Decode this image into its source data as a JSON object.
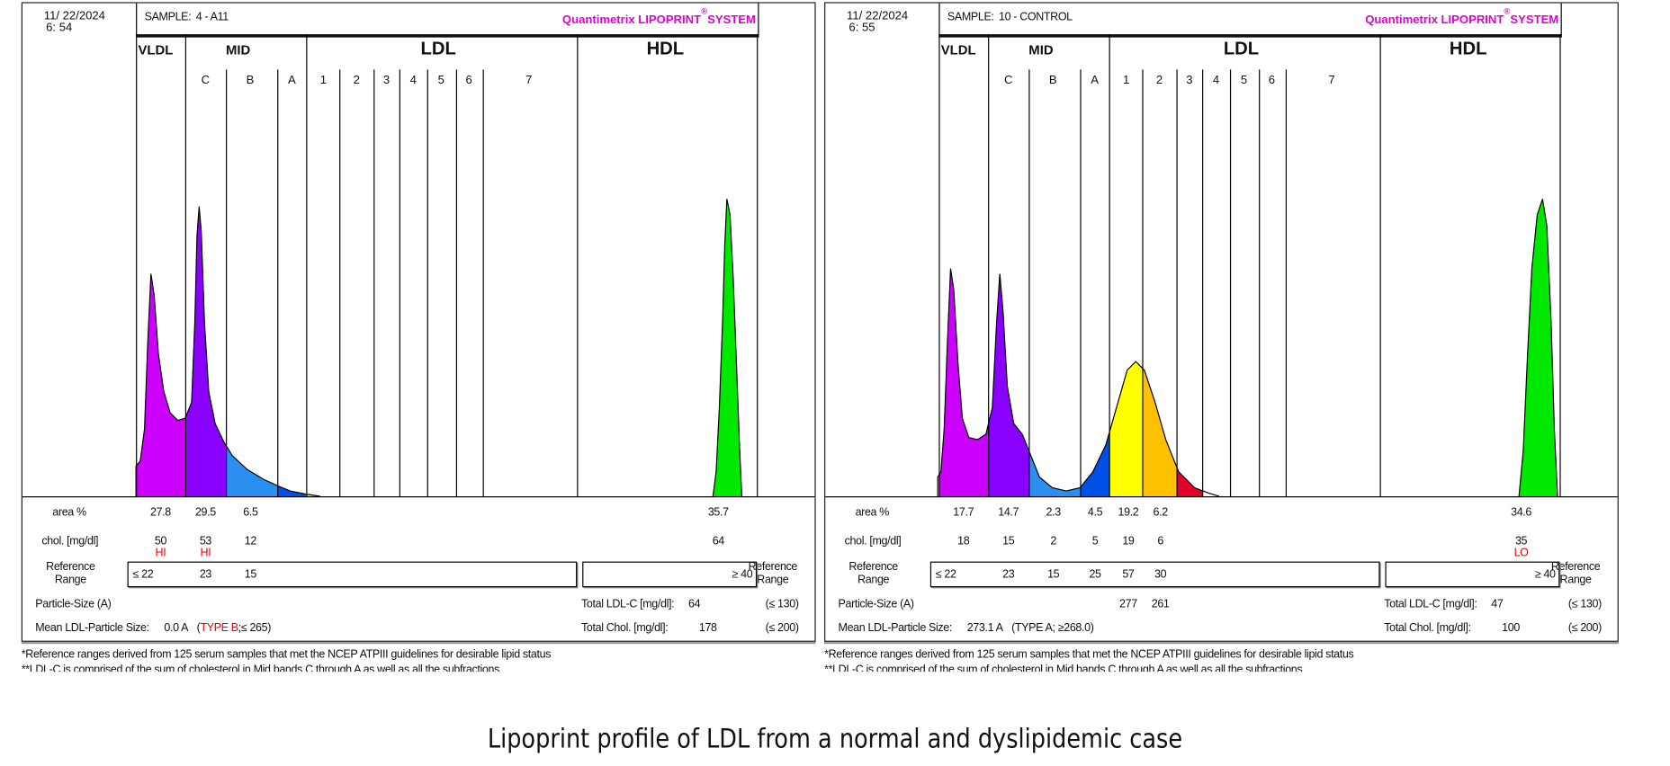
{
  "caption": "Lipoprint profile of LDL from a normal and dyslipidemic case",
  "footnotes": [
    "*Reference ranges derived from 125 serum samples that met the NCEP ATPIII guidelines for desirable lipid status",
    "**LDL-C is comprised of the sum of cholesterol in Mid bands C through A as well as all the subfractions"
  ],
  "labels": {
    "sample": "SAMPLE:",
    "brand": "Quantimetrix LIPOPRINT",
    "brand_mark": "®",
    "brand_suffix": "SYSTEM",
    "classes": [
      "VLDL",
      "MID",
      "LDL",
      "HDL"
    ],
    "subclasses": [
      "C",
      "B",
      "A",
      "1",
      "2",
      "3",
      "4",
      "5",
      "6",
      "7"
    ],
    "area": "area %",
    "chol": "chol. [mg/dl]",
    "reference_range": [
      "Reference",
      "Range"
    ],
    "particle_size": "Particle-Size (A)",
    "mean_size": "Mean LDL-Particle Size:",
    "total_ldl": "Total LDL-C [mg/dl]:",
    "total_chol": "Total Chol. [mg/dl]:"
  },
  "colors": {
    "VLDL": "#cc00ff",
    "C": "#8a00ff",
    "B": "#2a8ff0",
    "A": "#0050e8",
    "1": "#ffff00",
    "2": "#ffc000",
    "3": "#e0002a",
    "HDL": "#00e800",
    "brand": "#e000d0",
    "flag": "#ee0000"
  },
  "chart_data": [
    {
      "type": "area",
      "date": "11/ 22/2024",
      "time": "6: 54",
      "sample": "4 - A11",
      "bands": [
        "VLDL",
        "C",
        "B",
        "A",
        "1",
        "2",
        "3",
        "4",
        "5",
        "6",
        "7",
        "HDL"
      ],
      "area_percent": [
        27.8,
        29.5,
        6.5,
        null,
        null,
        null,
        null,
        null,
        null,
        null,
        null,
        35.7
      ],
      "chol_mg_dl": [
        50,
        53,
        12,
        null,
        null,
        null,
        null,
        null,
        null,
        null,
        null,
        64
      ],
      "flags": [
        "HI",
        "HI",
        null,
        null,
        null,
        null,
        null,
        null,
        null,
        null,
        null,
        null
      ],
      "reference_range": [
        "≤ 22",
        "23",
        "15",
        null,
        null,
        null,
        null,
        null,
        null,
        null,
        null,
        "≥ 40"
      ],
      "particle_size": [
        null,
        null,
        null,
        null,
        null,
        null,
        null,
        null,
        null,
        null,
        null,
        null
      ],
      "mean_size": "0.0 A",
      "type_label": "TYPE B",
      "type_range": ";≤ 265)",
      "type_flagged": true,
      "total_ldl_c": "64",
      "total_ldl_c_ref": "(≤ 130)",
      "total_chol": "178",
      "total_chol_ref": "(≤ 200)"
    },
    {
      "type": "area",
      "date": "11/ 22/2024",
      "time": "6: 55",
      "sample": "10 - CONTROL",
      "bands": [
        "VLDL",
        "C",
        "B",
        "A",
        "1",
        "2",
        "3",
        "4",
        "5",
        "6",
        "7",
        "HDL"
      ],
      "area_percent": [
        17.7,
        14.7,
        2.3,
        4.5,
        19.2,
        6.2,
        null,
        null,
        null,
        null,
        null,
        34.6
      ],
      "chol_mg_dl": [
        18,
        15,
        2,
        5,
        19,
        6,
        null,
        null,
        null,
        null,
        null,
        35
      ],
      "flags": [
        null,
        null,
        null,
        null,
        null,
        null,
        null,
        null,
        null,
        null,
        null,
        "LO"
      ],
      "reference_range": [
        "≤ 22",
        "23",
        "15",
        "25",
        "57",
        "30",
        null,
        null,
        null,
        null,
        null,
        "≥ 40"
      ],
      "particle_size": [
        null,
        null,
        null,
        null,
        277,
        261,
        null,
        null,
        null,
        null,
        null,
        null
      ],
      "mean_size": "273.1 A",
      "type_label": "TYPE A",
      "type_range": "; ≥268.0)",
      "type_flagged": false,
      "total_ldl_c": "47",
      "total_ldl_c_ref": "(≤ 130)",
      "total_chol": "100",
      "total_chol_ref": "(≤ 200)"
    }
  ]
}
